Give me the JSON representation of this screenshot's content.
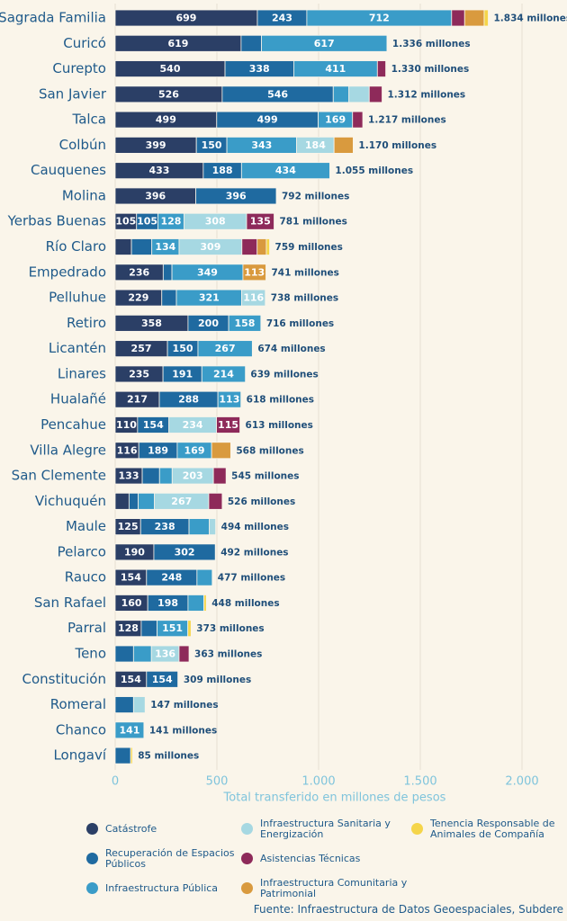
{
  "chart_data": {
    "type": "stacked-bar-horizontal",
    "categories": [
      "Sagrada Familia",
      "Curicó",
      "Curepto",
      "San Javier",
      "Talca",
      "Colbún",
      "Cauquenes",
      "Molina",
      "Yerbas Buenas",
      "Río Claro",
      "Empedrado",
      "Pelluhue",
      "Retiro",
      "Licantén",
      "Linares",
      "Hualañé",
      "Pencahue",
      "Villa Alegre",
      "San Clemente",
      "Vichuquén",
      "Maule",
      "Pelarco",
      "Rauco",
      "San Rafael",
      "Parral",
      "Teno",
      "Constitución",
      "Romeral",
      "Chanco",
      "Longaví"
    ],
    "series": [
      {
        "name": "Catástrofe",
        "color": "#2b3f66",
        "values": [
          699,
          619,
          540,
          526,
          499,
          399,
          433,
          396,
          105,
          80,
          236,
          229,
          358,
          257,
          235,
          217,
          110,
          116,
          133,
          68,
          125,
          190,
          154,
          160,
          128,
          null,
          154,
          null,
          null,
          null
        ]
      },
      {
        "name": "Recuperación de Espacios Públicos",
        "color": "#1f6aa0",
        "values": [
          243,
          100,
          338,
          546,
          499,
          150,
          188,
          396,
          105,
          100,
          43,
          72,
          200,
          150,
          191,
          288,
          154,
          189,
          85,
          45,
          238,
          302,
          248,
          198,
          78,
          90,
          154,
          90,
          null,
          76
        ]
      },
      {
        "name": "Infraestructura Pública",
        "color": "#3a9cc8",
        "values": [
          712,
          617,
          411,
          77,
          169,
          343,
          434,
          null,
          128,
          134,
          349,
          321,
          158,
          267,
          214,
          113,
          null,
          169,
          62,
          80,
          100,
          null,
          75,
          78,
          151,
          88,
          null,
          null,
          141,
          null
        ]
      },
      {
        "name": "Infraestructura Sanitaria y Energización",
        "color": "#a6d8e2",
        "values": [
          null,
          null,
          null,
          100,
          null,
          184,
          null,
          null,
          308,
          309,
          null,
          116,
          null,
          null,
          null,
          null,
          234,
          null,
          203,
          267,
          31,
          null,
          null,
          null,
          null,
          136,
          null,
          57,
          null,
          null
        ]
      },
      {
        "name": "Asistencias Técnicas",
        "color": "#8e2a5a",
        "values": [
          64,
          null,
          41,
          63,
          50,
          null,
          null,
          null,
          135,
          75,
          null,
          null,
          null,
          null,
          null,
          null,
          115,
          null,
          62,
          66,
          null,
          null,
          null,
          null,
          null,
          49,
          null,
          null,
          null,
          null
        ]
      },
      {
        "name": "Infraestructura Comunitaria y Patrimonial",
        "color": "#d99a3e",
        "values": [
          96,
          null,
          null,
          null,
          null,
          94,
          null,
          null,
          null,
          45,
          113,
          null,
          null,
          null,
          null,
          null,
          null,
          94,
          null,
          null,
          null,
          null,
          null,
          null,
          null,
          null,
          null,
          null,
          null,
          null
        ]
      },
      {
        "name": "Tenencia Responsable de Animales de Compañía",
        "color": "#f5d54a",
        "values": [
          20,
          null,
          null,
          null,
          null,
          null,
          null,
          null,
          null,
          16,
          null,
          null,
          null,
          null,
          null,
          null,
          null,
          null,
          null,
          null,
          null,
          null,
          null,
          12,
          16,
          null,
          null,
          null,
          null,
          9
        ]
      }
    ],
    "totals": {
      "values": [
        1834,
        1336,
        1330,
        1312,
        1217,
        1170,
        1055,
        792,
        781,
        759,
        741,
        738,
        716,
        674,
        639,
        618,
        613,
        568,
        545,
        526,
        494,
        492,
        477,
        448,
        373,
        363,
        309,
        147,
        141,
        85
      ],
      "value_labels": [
        "1.834 millones",
        "1.336 millones",
        "1.330 millones",
        "1.312 millones",
        "1.217 millones",
        "1.170 millones",
        "1.055 millones",
        "792 millones",
        "781 millones",
        "759 millones",
        "741 millones",
        "738 millones",
        "716 millones",
        "674 millones",
        "639 millones",
        "618 millones",
        "613 millones",
        "568 millones",
        "545 millones",
        "526 millones",
        "494 millones",
        "492 millones",
        "477 millones",
        "448 millones",
        "373 millones",
        "363 millones",
        "309 millones",
        "147 millones",
        "141 millones",
        "85 millones"
      ]
    },
    "xlim": [
      0,
      2000
    ],
    "xticks": [
      0,
      500,
      {
        "value": 1000,
        "label": "1.000"
      },
      {
        "value": 1500,
        "label": "1.500"
      },
      {
        "value": 2000,
        "label": "2.000"
      }
    ],
    "xlabel": "Total transferido en millones de pesos",
    "grid": true,
    "source": "Fuente: Infraestructura de Datos Geoespaciales, Subdere"
  }
}
